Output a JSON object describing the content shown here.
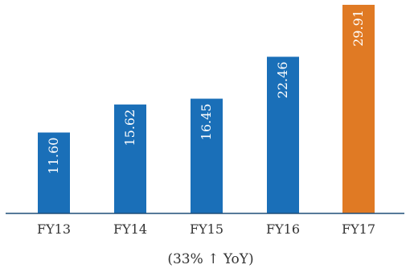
{
  "chart_data": {
    "type": "bar",
    "categories": [
      "FY13",
      "FY14",
      "FY15",
      "FY16",
      "FY17"
    ],
    "values": [
      11.6,
      15.62,
      16.45,
      22.46,
      29.91
    ],
    "value_labels": [
      "11.60",
      "15.62",
      "16.45",
      "22.46",
      "29.91"
    ],
    "ylim": [
      0,
      30.6
    ],
    "grid": false,
    "legend": "none",
    "colors": {
      "default": "#1a6fb8",
      "highlight": "#e07a24",
      "highlight_category": "FY17",
      "axis": "#1f4e79"
    },
    "annotation": "(33% ↑ YoY)"
  }
}
